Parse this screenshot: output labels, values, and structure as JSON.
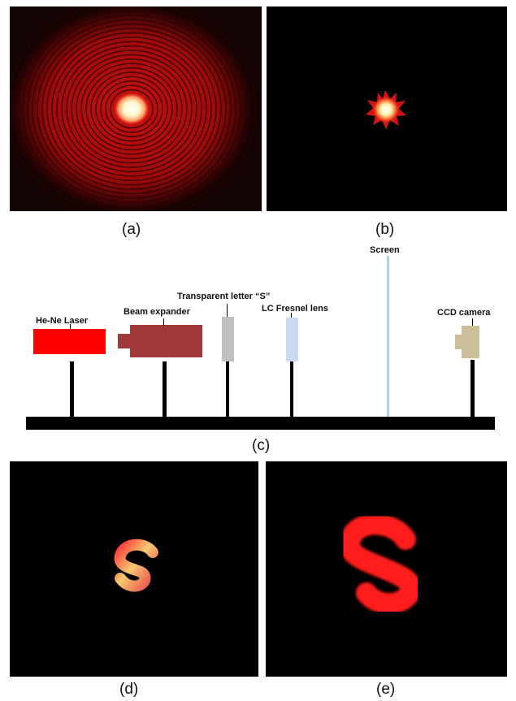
{
  "panels": {
    "a": {
      "caption": "(a)",
      "description_icon": "laser-ring-pattern"
    },
    "b": {
      "caption": "(b)",
      "description_icon": "focused-spot"
    },
    "c": {
      "caption": "(c)"
    },
    "d": {
      "caption": "(d)",
      "description_icon": "small-letter-s-image"
    },
    "e": {
      "caption": "(e)",
      "description_icon": "large-letter-s-image"
    }
  },
  "setup": {
    "laser_label": "He-Ne Laser",
    "expander_label": "Beam expander",
    "object_label": "Transparent letter “S”",
    "lens_label": "LC Fresnel lens",
    "screen_label": "Screen",
    "camera_label": "CCD camera"
  },
  "colors": {
    "laser": "#ff0000",
    "expander": "#a0383a",
    "object": "#c0c0c0",
    "lens": "#c9daf2",
    "screen": "#a9d4e3",
    "camera": "#cbbf9a",
    "rail": "#000000",
    "image_red": "#ff1a1a"
  }
}
